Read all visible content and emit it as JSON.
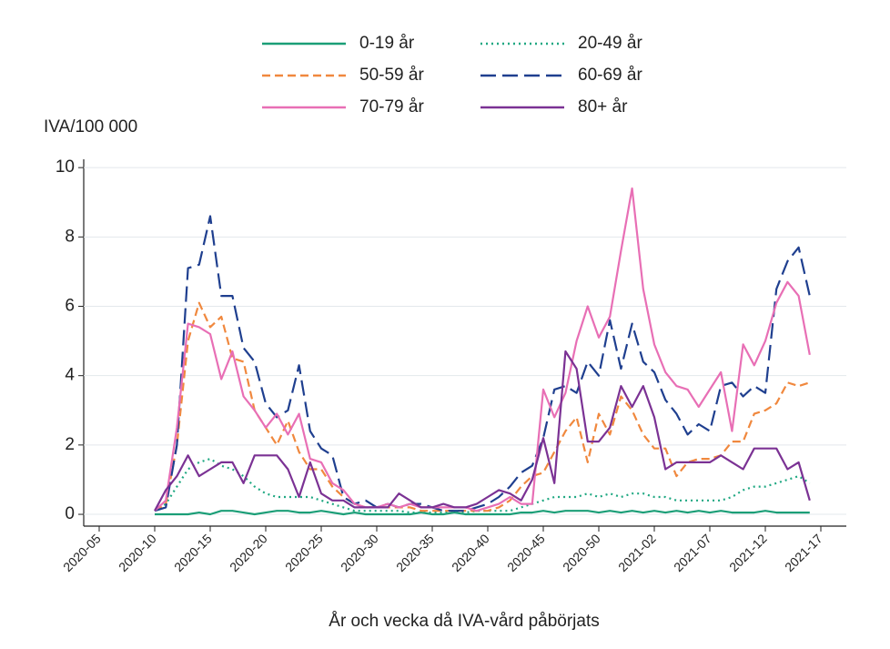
{
  "chart_data": {
    "type": "line",
    "y_label": "IVA/100 000",
    "x_label": "År och vecka då IVA-vård påbörjats",
    "categories": [
      "2020-05",
      null,
      null,
      null,
      null,
      "2020-10",
      null,
      null,
      null,
      null,
      "2020-15",
      null,
      null,
      null,
      null,
      "2020-20",
      null,
      null,
      null,
      null,
      "2020-25",
      null,
      null,
      null,
      null,
      "2020-30",
      null,
      null,
      null,
      null,
      "2020-35",
      null,
      null,
      null,
      null,
      "2020-40",
      null,
      null,
      null,
      null,
      "2020-45",
      null,
      null,
      null,
      null,
      "2020-50",
      null,
      null,
      null,
      null,
      "2021-02",
      null,
      null,
      null,
      null,
      "2021-07",
      null,
      null,
      null,
      null,
      "2021-12",
      null,
      null,
      null,
      null,
      "2021-17"
    ],
    "ylim": [
      -0.34,
      10.24
    ],
    "yticks": [
      0,
      2,
      4,
      6,
      8,
      10
    ],
    "grid": true,
    "series": [
      {
        "name": "0-19 år",
        "color": "#1b9e77",
        "dash": "solid",
        "values": [
          null,
          null,
          null,
          null,
          null,
          0,
          0,
          0,
          0,
          0.05,
          0,
          0.1,
          0.1,
          0.05,
          0,
          0.05,
          0.1,
          0.1,
          0.05,
          0.05,
          0.1,
          0.05,
          0,
          0.05,
          0,
          0,
          0,
          0,
          0,
          0.05,
          0,
          0,
          0.05,
          0,
          0,
          0,
          0,
          0,
          0.05,
          0.05,
          0.1,
          0.05,
          0.1,
          0.1,
          0.1,
          0.05,
          0.1,
          0.05,
          0.1,
          0.05,
          0.1,
          0.05,
          0.1,
          0.05,
          0.1,
          0.05,
          0.1,
          0.05,
          0.05,
          0.05,
          0.1,
          0.05,
          0.05,
          0.05,
          0.05,
          null
        ]
      },
      {
        "name": "20-49 år",
        "color": "#1fa882",
        "dash": "dotted",
        "values": [
          null,
          null,
          null,
          null,
          null,
          0.1,
          0.3,
          0.8,
          1.3,
          1.5,
          1.6,
          1.4,
          1.3,
          1.1,
          0.8,
          0.6,
          0.5,
          0.5,
          0.5,
          0.5,
          0.4,
          0.3,
          0.2,
          0.1,
          0.1,
          0.1,
          0.1,
          0.1,
          0.05,
          0.05,
          0.05,
          0.05,
          0.05,
          0.05,
          0.1,
          0.1,
          0.1,
          0.1,
          0.2,
          0.3,
          0.4,
          0.5,
          0.5,
          0.5,
          0.6,
          0.5,
          0.6,
          0.5,
          0.6,
          0.6,
          0.5,
          0.5,
          0.4,
          0.4,
          0.4,
          0.4,
          0.4,
          0.5,
          0.7,
          0.8,
          0.8,
          0.9,
          1.0,
          1.1,
          0.9,
          null
        ]
      },
      {
        "name": "50-59 år",
        "color": "#f0883e",
        "dash": "dashed",
        "values": [
          null,
          null,
          null,
          null,
          null,
          0.1,
          0.3,
          2.0,
          5.0,
          6.1,
          5.4,
          5.7,
          4.5,
          4.4,
          3.0,
          2.5,
          2.0,
          2.7,
          1.8,
          1.3,
          1.3,
          0.8,
          0.5,
          0.3,
          0.2,
          0.2,
          0.2,
          0.2,
          0.2,
          0.1,
          0.1,
          0.1,
          0.1,
          0.1,
          0.1,
          0.1,
          0.2,
          0.4,
          0.8,
          1.1,
          1.2,
          1.8,
          2.4,
          2.8,
          1.5,
          2.9,
          2.3,
          3.4,
          3.0,
          2.3,
          1.9,
          1.9,
          1.1,
          1.5,
          1.6,
          1.6,
          1.7,
          2.1,
          2.1,
          2.9,
          3.0,
          3.2,
          3.8,
          3.7,
          3.8,
          null
        ]
      },
      {
        "name": "60-69 år",
        "color": "#1f3f8f",
        "dash": "longdash",
        "values": [
          null,
          null,
          null,
          null,
          null,
          0.1,
          0.2,
          2.0,
          7.1,
          7.2,
          8.6,
          6.3,
          6.3,
          4.8,
          4.4,
          3.2,
          2.8,
          3.0,
          4.3,
          2.4,
          1.9,
          1.7,
          0.5,
          0.3,
          0.4,
          0.2,
          0.3,
          0.2,
          0.3,
          0.3,
          0.2,
          0.1,
          0.1,
          0.1,
          0.2,
          0.3,
          0.5,
          0.8,
          1.2,
          1.4,
          2.2,
          3.6,
          3.7,
          3.5,
          4.4,
          4.0,
          5.6,
          4.2,
          5.5,
          4.4,
          4.1,
          3.3,
          2.9,
          2.3,
          2.6,
          2.4,
          3.7,
          3.8,
          3.4,
          3.7,
          3.5,
          6.5,
          7.3,
          7.7,
          6.3,
          null
        ]
      },
      {
        "name": "70-79 år",
        "color": "#e86fb5",
        "dash": "solid",
        "values": [
          null,
          null,
          null,
          null,
          null,
          0.1,
          0.4,
          2.5,
          5.5,
          5.4,
          5.2,
          3.9,
          4.7,
          3.4,
          3.0,
          2.5,
          2.9,
          2.3,
          2.9,
          1.6,
          1.5,
          0.9,
          0.7,
          0.3,
          0.2,
          0.2,
          0.3,
          0.2,
          0.3,
          0.2,
          0.2,
          0.2,
          0.2,
          0.2,
          0.1,
          0.2,
          0.3,
          0.5,
          0.3,
          0.3,
          3.6,
          2.8,
          3.5,
          5.0,
          6.0,
          5.1,
          5.7,
          7.6,
          9.4,
          6.5,
          4.9,
          4.1,
          3.7,
          3.6,
          3.1,
          3.6,
          4.1,
          2.4,
          4.9,
          4.3,
          5.0,
          6.1,
          6.7,
          6.3,
          4.6,
          null
        ]
      },
      {
        "name": "80+ år",
        "color": "#7b3294",
        "dash": "solid",
        "values": [
          null,
          null,
          null,
          null,
          null,
          0.1,
          0.7,
          1.1,
          1.7,
          1.1,
          1.3,
          1.5,
          1.5,
          0.9,
          1.7,
          1.7,
          1.7,
          1.3,
          0.5,
          1.5,
          0.6,
          0.4,
          0.4,
          0.2,
          0.2,
          0.2,
          0.2,
          0.6,
          0.4,
          0.2,
          0.2,
          0.3,
          0.2,
          0.2,
          0.3,
          0.5,
          0.7,
          0.6,
          0.4,
          1.0,
          2.2,
          0.9,
          4.7,
          4.2,
          2.1,
          2.1,
          2.5,
          3.7,
          3.1,
          3.7,
          2.8,
          1.3,
          1.5,
          1.5,
          1.5,
          1.5,
          1.7,
          1.5,
          1.3,
          1.9,
          1.9,
          1.9,
          1.3,
          1.5,
          0.4,
          null
        ]
      }
    ]
  }
}
